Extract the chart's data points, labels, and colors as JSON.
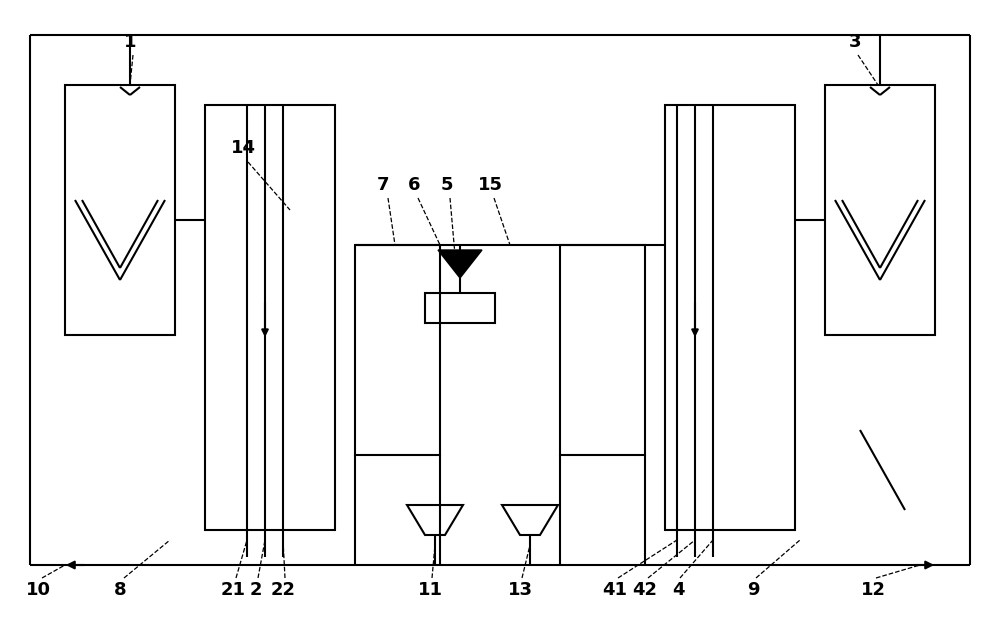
{
  "figsize": [
    10.0,
    6.29
  ],
  "dpi": 100,
  "bg_color": "#ffffff",
  "line_color": "#000000",
  "lw": 1.5,
  "label_fontsize": 13,
  "label_bold": true
}
